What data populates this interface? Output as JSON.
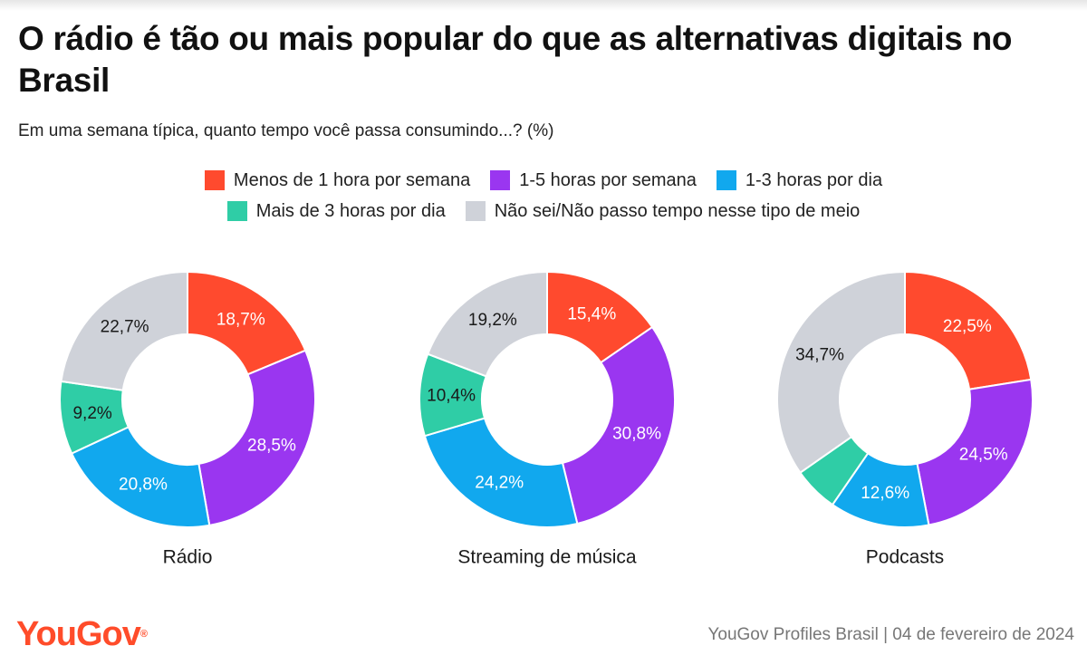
{
  "title": "O rádio é tão ou mais popular do que as alternativas digitais no Brasil",
  "subtitle": "Em uma semana típica, quanto tempo você passa consumindo...? (%)",
  "legend": [
    {
      "label": "Menos de 1 hora por semana",
      "color": "#ff4a2e"
    },
    {
      "label": "1-5 horas por semana",
      "color": "#9a36f0"
    },
    {
      "label": "1-3 horas por dia",
      "color": "#11a8ee"
    },
    {
      "label": "Mais de 3 horas por dia",
      "color": "#2fcda6"
    },
    {
      "label": "Não sei/Não passo tempo nesse tipo de meio",
      "color": "#cfd2d9"
    }
  ],
  "chart_data": [
    {
      "type": "pie",
      "variant": "donut",
      "label": "Rádio",
      "categories": [
        "Menos de 1 hora por semana",
        "1-5 horas por semana",
        "1-3 horas por dia",
        "Mais de 3 horas por dia",
        "Não sei/Não passo tempo nesse tipo de meio"
      ],
      "values": [
        18.7,
        28.5,
        20.8,
        9.2,
        22.7
      ],
      "data_labels": [
        "18,7%",
        "28,5%",
        "20,8%",
        "9,2%",
        "22,7%"
      ]
    },
    {
      "type": "pie",
      "variant": "donut",
      "label": "Streaming de música",
      "categories": [
        "Menos de 1 hora por semana",
        "1-5 horas por semana",
        "1-3 horas por dia",
        "Mais de 3 horas por dia",
        "Não sei/Não passo tempo nesse tipo de meio"
      ],
      "values": [
        15.4,
        30.8,
        24.2,
        10.4,
        19.2
      ],
      "data_labels": [
        "15,4%",
        "30,8%",
        "24,2%",
        "10,4%",
        "19,2%"
      ]
    },
    {
      "type": "pie",
      "variant": "donut",
      "label": "Podcasts",
      "categories": [
        "Menos de 1 hora por semana",
        "1-5 horas por semana",
        "1-3 horas por dia",
        "Mais de 3 horas por dia",
        "Não sei/Não passo tempo nesse tipo de meio"
      ],
      "values": [
        22.5,
        24.5,
        12.6,
        5.7,
        34.7
      ],
      "data_labels": [
        "22,5%",
        "24,5%",
        "12,6%",
        "",
        "34,7%"
      ]
    }
  ],
  "footer": {
    "logo": "YouGov",
    "source": "YouGov Profiles Brasil | 04 de fevereiro de 2024"
  }
}
